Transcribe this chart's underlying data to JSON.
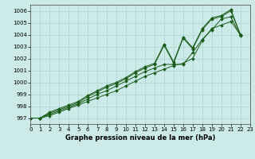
{
  "xlabel": "Graphe pression niveau de la mer (hPa)",
  "xlim": [
    0,
    23
  ],
  "ylim": [
    996.5,
    1006.5
  ],
  "yticks": [
    997,
    998,
    999,
    1000,
    1001,
    1002,
    1003,
    1004,
    1005,
    1006
  ],
  "xticks": [
    0,
    1,
    2,
    3,
    4,
    5,
    6,
    7,
    8,
    9,
    10,
    11,
    12,
    13,
    14,
    15,
    16,
    17,
    18,
    19,
    20,
    21,
    22,
    23
  ],
  "background_color": "#cceae8",
  "grid_color": "#aad4d0",
  "line_color": "#1a5c1a",
  "series": [
    [
      997.0,
      997.0,
      997.2,
      997.5,
      997.8,
      998.1,
      998.4,
      998.7,
      999.0,
      999.3,
      999.7,
      1000.1,
      1000.5,
      1000.8,
      1001.1,
      1001.4,
      1001.6,
      1002.0,
      1003.5,
      1004.5,
      1004.8,
      1005.1,
      1004.0
    ],
    [
      997.0,
      997.0,
      997.3,
      997.6,
      997.9,
      998.2,
      998.6,
      999.0,
      999.3,
      999.7,
      1000.1,
      1000.5,
      1000.9,
      1001.2,
      1001.5,
      1001.5,
      1001.5,
      1002.5,
      1003.6,
      1004.4,
      1005.3,
      1005.5,
      1003.9
    ],
    [
      997.0,
      997.0,
      997.4,
      997.7,
      998.0,
      998.3,
      998.8,
      999.2,
      999.6,
      999.9,
      1000.3,
      1000.8,
      1001.2,
      1001.5,
      1003.1,
      1001.6,
      1003.7,
      1002.8,
      1004.4,
      1005.3,
      1005.5,
      1006.0,
      1004.0
    ],
    [
      997.0,
      997.0,
      997.5,
      997.8,
      998.1,
      998.4,
      998.9,
      999.3,
      999.7,
      1000.0,
      1000.4,
      1000.9,
      1001.3,
      1001.6,
      1003.2,
      1001.7,
      1003.8,
      1002.9,
      1004.5,
      1005.4,
      1005.6,
      1006.1,
      1004.0
    ]
  ]
}
